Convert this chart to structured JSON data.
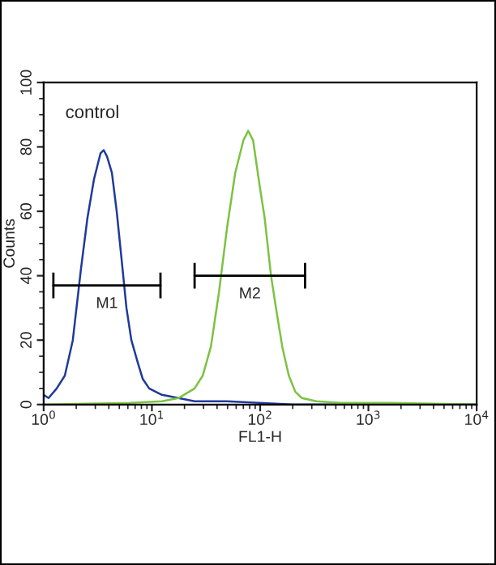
{
  "chart_data": {
    "type": "line",
    "xlabel": "FL1-H",
    "ylabel": "Counts",
    "log": "x",
    "xlim": [
      1,
      10000
    ],
    "ylim": [
      0,
      100
    ],
    "xticks": [
      {
        "value": 1,
        "label": "10$^{0}$"
      },
      {
        "value": 10,
        "label": "10$^{1}$"
      },
      {
        "value": 100,
        "label": "10$^{2}$"
      },
      {
        "value": 1000,
        "label": "10$^{3}$"
      },
      {
        "value": 10000,
        "label": "10$^{4}$"
      }
    ],
    "yticks": [
      0,
      20,
      40,
      60,
      80,
      100
    ],
    "grid": false,
    "legend": false,
    "marker": "none",
    "line_style": "solid",
    "annotations": [
      "control"
    ],
    "series": [
      {
        "color": "#1f3a9a",
        "x": [
          1,
          1.11,
          1.32,
          1.57,
          1.86,
          2.21,
          2.54,
          2.92,
          3.35,
          3.59,
          3.85,
          4.27,
          4.73,
          5.25,
          5.82,
          6.46,
          7.41,
          8.22,
          9.44,
          10.8,
          12.4,
          17.6,
          24.8,
          49.5,
          98.9,
          197,
          10000
        ],
        "values": [
          3,
          2,
          5,
          9,
          20,
          42,
          58,
          70,
          78,
          79,
          77,
          72,
          60,
          45,
          30,
          20,
          13,
          8,
          5,
          4,
          3,
          2,
          1,
          1,
          0.5,
          0,
          0
        ]
      },
      {
        "color": "#7cc242",
        "x": [
          1,
          6.24,
          12.4,
          17.6,
          24.8,
          29.5,
          35.1,
          41.7,
          49.5,
          58.9,
          70.0,
          77.6,
          86.1,
          98.9,
          110,
          126,
          140,
          160,
          184,
          211,
          243,
          331,
          556,
          1567,
          10000
        ],
        "values": [
          0,
          0.5,
          1,
          2,
          5,
          9,
          18,
          35,
          55,
          72,
          82,
          85,
          82,
          68,
          58,
          40,
          30,
          18,
          9,
          4,
          2,
          1,
          0.5,
          0.5,
          0
        ]
      },
      {
        "name": "M1",
        "color": "#000000",
        "x": [
          1.23,
          12.0
        ],
        "values": [
          37,
          37
        ],
        "errors": [
          4,
          4
        ]
      },
      {
        "name": "M2",
        "color": "#000000",
        "x": [
          24.8,
          260
        ],
        "values": [
          40,
          40
        ],
        "errors": [
          4,
          4
        ]
      }
    ]
  }
}
